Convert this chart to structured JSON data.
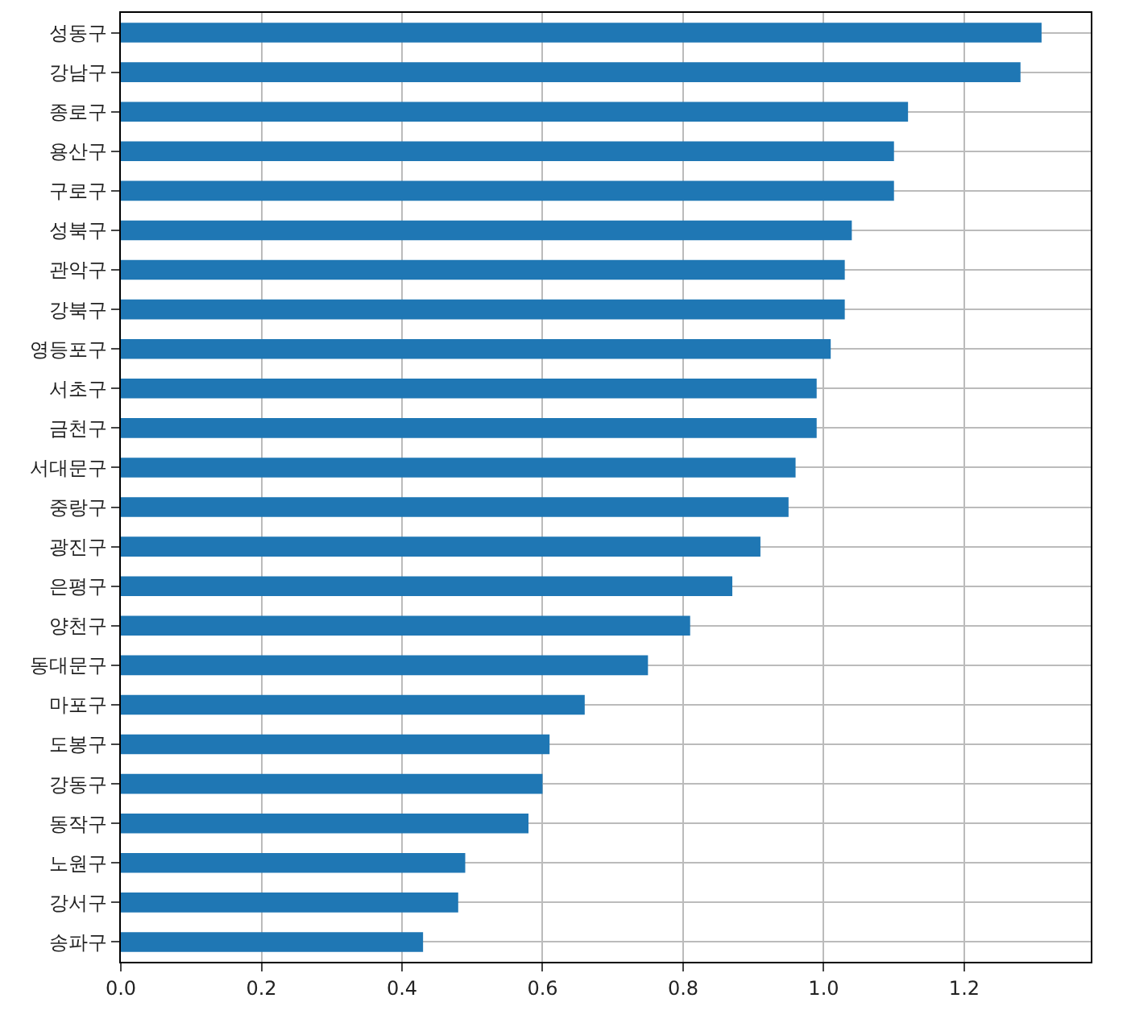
{
  "chart_data": {
    "type": "bar",
    "orientation": "horizontal",
    "categories": [
      "성동구",
      "강남구",
      "종로구",
      "용산구",
      "구로구",
      "성북구",
      "관악구",
      "강북구",
      "영등포구",
      "서초구",
      "금천구",
      "서대문구",
      "중랑구",
      "광진구",
      "은평구",
      "양천구",
      "동대문구",
      "마포구",
      "도봉구",
      "강동구",
      "동작구",
      "노원구",
      "강서구",
      "송파구"
    ],
    "values": [
      1.31,
      1.28,
      1.12,
      1.1,
      1.1,
      1.04,
      1.03,
      1.03,
      1.01,
      0.99,
      0.99,
      0.96,
      0.95,
      0.91,
      0.87,
      0.81,
      0.75,
      0.66,
      0.61,
      0.6,
      0.58,
      0.49,
      0.48,
      0.43
    ],
    "color": "#1f77b4",
    "xlim": [
      0,
      1.38
    ],
    "xticks": [
      {
        "value": 0,
        "label": "0.0"
      },
      {
        "value": 0.2,
        "label": "0.2"
      },
      {
        "value": 0.4,
        "label": "0.4"
      },
      {
        "value": 0.6,
        "label": "0.6"
      },
      {
        "value": 0.8,
        "label": "0.8"
      },
      {
        "value": 1,
        "label": "1.0"
      },
      {
        "value": 1.2,
        "label": "1.2"
      }
    ],
    "grid": true
  }
}
